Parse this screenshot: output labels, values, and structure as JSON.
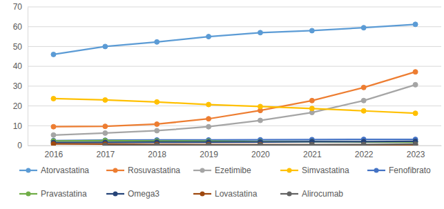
{
  "chart_data": {
    "type": "line",
    "categories": [
      "2016",
      "2017",
      "2018",
      "2019",
      "2020",
      "2021",
      "2022",
      "2023"
    ],
    "ylim": [
      0,
      70
    ],
    "yticks": [
      0,
      10,
      20,
      30,
      40,
      50,
      60,
      70
    ],
    "grid": true,
    "legend": "bottom",
    "marker": "circle",
    "series": [
      {
        "name": "Atorvastatina",
        "color": "#5B9BD5",
        "values": [
          46,
          50,
          52.3,
          55,
          57,
          58,
          59.5,
          61.2
        ]
      },
      {
        "name": "Rosuvastatina",
        "color": "#ED7D31",
        "values": [
          9.5,
          9.7,
          10.8,
          13.5,
          17.7,
          22.7,
          29.3,
          37.2
        ]
      },
      {
        "name": "Ezetimibe",
        "color": "#A5A5A5",
        "values": [
          5.3,
          6.3,
          7.5,
          9.5,
          12.7,
          16.7,
          22.7,
          30.7
        ]
      },
      {
        "name": "Simvastatina",
        "color": "#FFC000",
        "values": [
          23.7,
          23,
          22,
          20.7,
          19.7,
          18.7,
          17.5,
          16.3
        ]
      },
      {
        "name": "Fenofibrato",
        "color": "#4472C4",
        "values": [
          2.5,
          2.7,
          2.8,
          2.8,
          2.9,
          3,
          3.1,
          3.1
        ]
      },
      {
        "name": "Pravastatina",
        "color": "#70AD47",
        "values": [
          2.3,
          2.5,
          2.3,
          2.2,
          2,
          2,
          1.8,
          1.7
        ]
      },
      {
        "name": "Omega3",
        "color": "#264478",
        "values": [
          1.5,
          1.6,
          1.7,
          1.7,
          1.8,
          2,
          2,
          2.1
        ]
      },
      {
        "name": "Lovastatina",
        "color": "#9E480E",
        "values": [
          0.8,
          0.7,
          0.6,
          0.5,
          0.5,
          0.4,
          0.4,
          0.4
        ]
      },
      {
        "name": "Alirocumab",
        "color": "#636363",
        "values": [
          null,
          0.1,
          0.2,
          0.2,
          0.3,
          0.4,
          0.5,
          0.7
        ]
      }
    ]
  }
}
